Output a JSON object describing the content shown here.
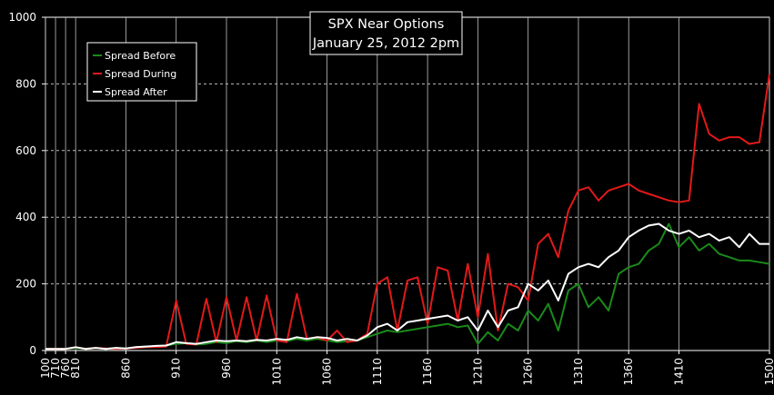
{
  "chart_data": {
    "type": "line",
    "title": "SPX Near Options",
    "subtitle": "January 25, 2012 2pm",
    "ylim": [
      0,
      1000
    ],
    "yticks": [
      0,
      200,
      400,
      600,
      800,
      1000
    ],
    "grid": true,
    "legend_position": "top-left",
    "x_tick_labels": [
      "100",
      "710",
      "760",
      "810",
      "860",
      "910",
      "960",
      "1010",
      "1060",
      "1110",
      "1160",
      "1210",
      "1260",
      "1310",
      "1360",
      "1410",
      "1500"
    ],
    "x": [
      100,
      710,
      760,
      810,
      820,
      830,
      840,
      850,
      860,
      870,
      880,
      890,
      900,
      910,
      920,
      930,
      940,
      950,
      960,
      970,
      980,
      990,
      1000,
      1010,
      1020,
      1030,
      1040,
      1050,
      1060,
      1070,
      1080,
      1090,
      1100,
      1110,
      1120,
      1130,
      1140,
      1150,
      1160,
      1170,
      1180,
      1190,
      1200,
      1210,
      1220,
      1230,
      1240,
      1250,
      1260,
      1270,
      1280,
      1290,
      1300,
      1310,
      1320,
      1330,
      1340,
      1350,
      1360,
      1370,
      1380,
      1390,
      1400,
      1410,
      1420,
      1430,
      1440,
      1450,
      1460,
      1470,
      1480,
      1490,
      1500
    ],
    "series": [
      {
        "name": "Spread Before",
        "color": "#1a8a1a",
        "values": [
          5,
          5,
          5,
          8,
          5,
          8,
          5,
          8,
          6,
          10,
          12,
          12,
          15,
          20,
          22,
          18,
          20,
          25,
          22,
          28,
          25,
          30,
          25,
          30,
          28,
          35,
          30,
          35,
          30,
          25,
          28,
          30,
          40,
          50,
          60,
          55,
          60,
          65,
          70,
          75,
          80,
          70,
          75,
          20,
          55,
          30,
          80,
          60,
          120,
          90,
          140,
          60,
          180,
          200,
          130,
          160,
          120,
          230,
          250,
          260,
          300,
          320,
          380,
          310,
          340,
          300,
          320,
          290,
          280,
          270,
          270,
          265,
          260
        ]
      },
      {
        "name": "Spread During",
        "color": "#e31919",
        "values": [
          5,
          5,
          5,
          10,
          5,
          8,
          6,
          5,
          6,
          8,
          10,
          10,
          12,
          150,
          20,
          18,
          155,
          25,
          160,
          30,
          160,
          30,
          165,
          30,
          25,
          170,
          35,
          40,
          30,
          60,
          25,
          30,
          50,
          200,
          220,
          60,
          210,
          220,
          80,
          250,
          240,
          90,
          260,
          100,
          290,
          60,
          200,
          190,
          150,
          320,
          350,
          280,
          420,
          480,
          490,
          450,
          480,
          490,
          500,
          480,
          470,
          460,
          450,
          445,
          450,
          740,
          650,
          630,
          640,
          640,
          620,
          625,
          830
        ]
      },
      {
        "name": "Spread After",
        "color": "#ffffff",
        "values": [
          5,
          5,
          5,
          10,
          5,
          8,
          5,
          8,
          6,
          10,
          12,
          14,
          15,
          25,
          22,
          20,
          25,
          30,
          28,
          30,
          28,
          32,
          30,
          35,
          32,
          40,
          35,
          40,
          38,
          30,
          35,
          30,
          45,
          70,
          80,
          60,
          85,
          90,
          95,
          100,
          105,
          90,
          100,
          60,
          120,
          70,
          120,
          130,
          200,
          180,
          210,
          150,
          230,
          250,
          260,
          250,
          280,
          300,
          340,
          360,
          375,
          380,
          360,
          350,
          360,
          340,
          350,
          330,
          340,
          310,
          350,
          320,
          320
        ]
      }
    ]
  },
  "colors": {
    "background": "#000000",
    "grid": "#bfbfbf",
    "axis": "#ffffff"
  }
}
